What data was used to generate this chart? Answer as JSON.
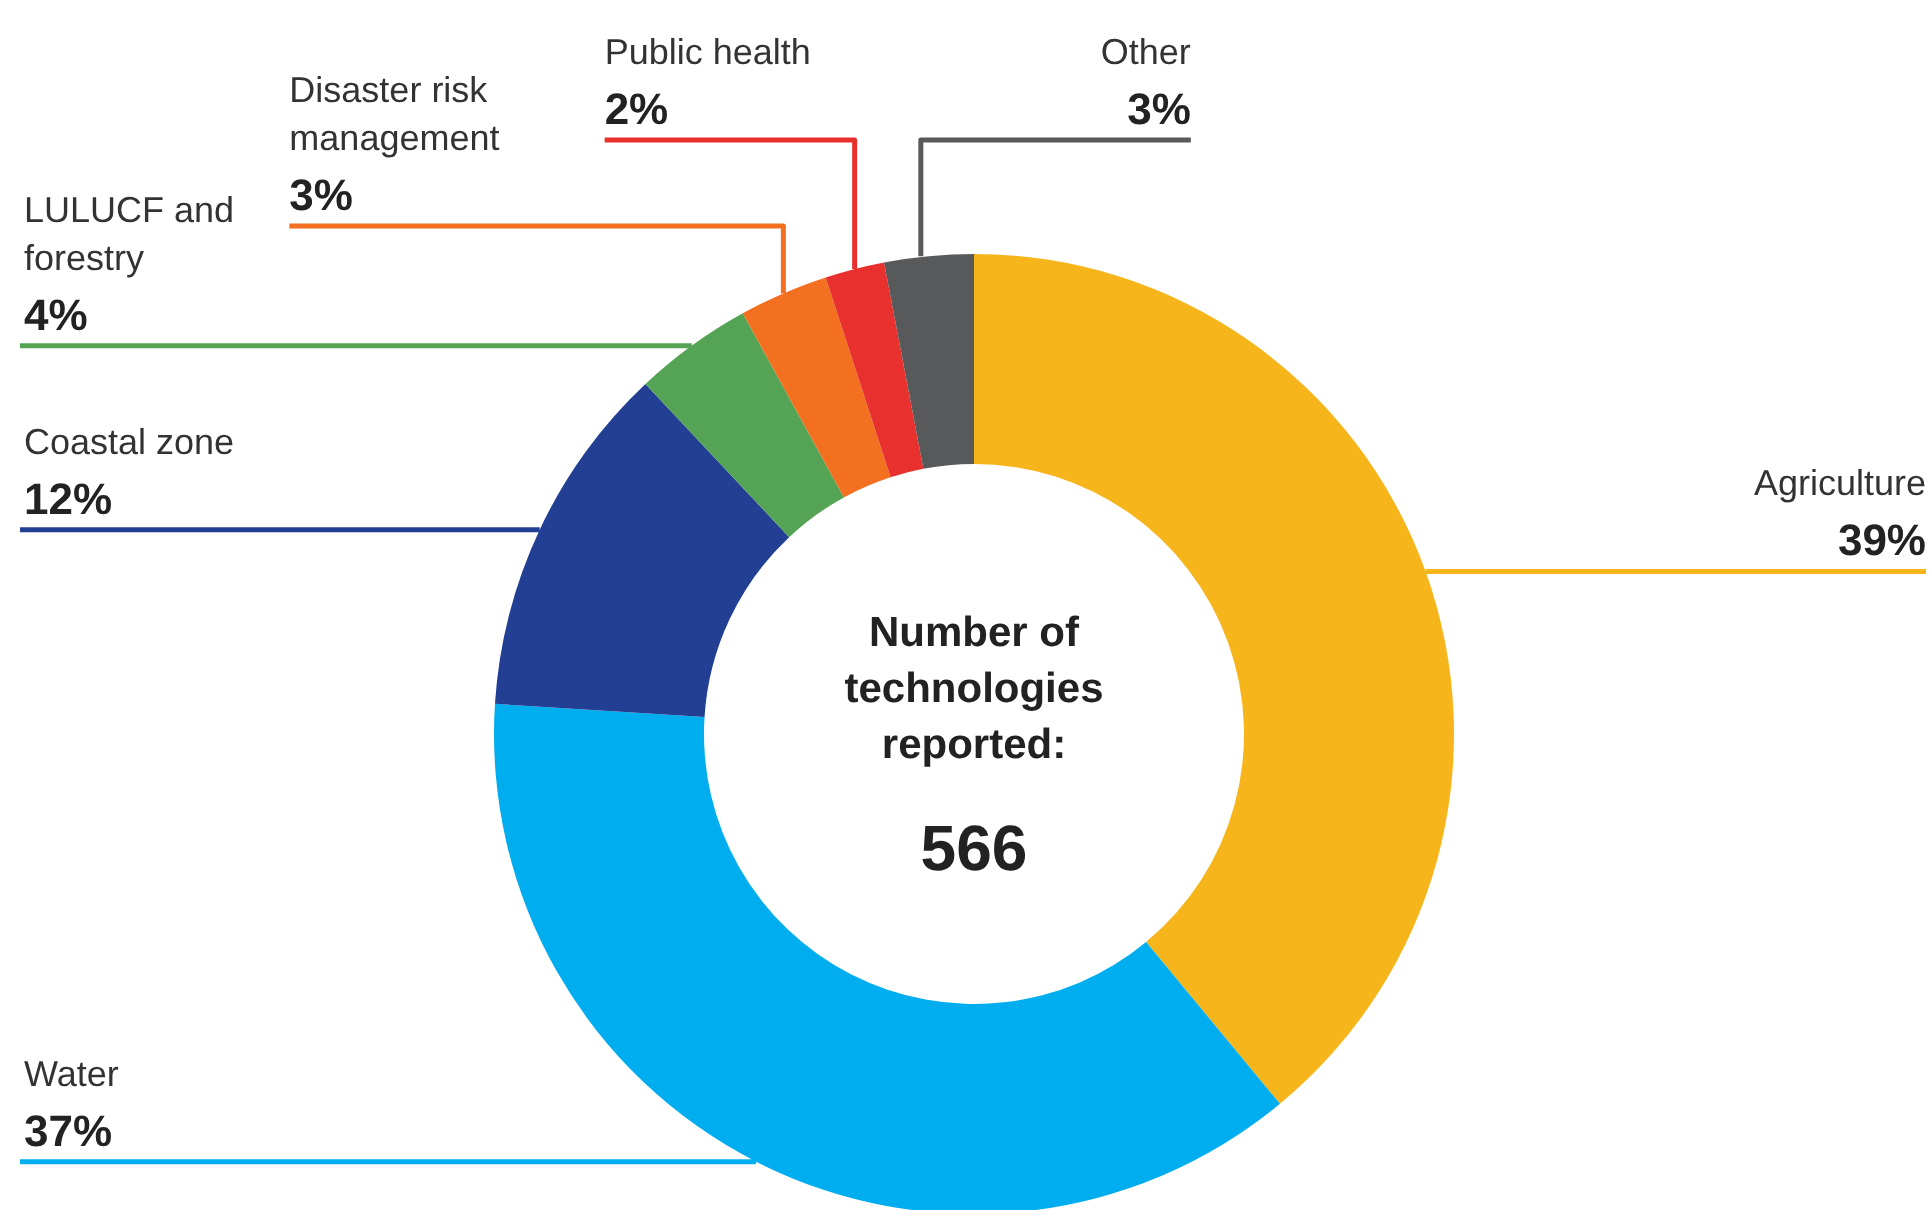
{
  "chart_data": {
    "type": "donut",
    "categories": [
      "Agriculture",
      "Water",
      "Coastal zone",
      "LULUCF and forestry",
      "Disaster risk management",
      "Public health",
      "Other"
    ],
    "values": [
      39,
      37,
      12,
      4,
      3,
      2,
      3
    ],
    "value_labels": [
      "39%",
      "37%",
      "12%",
      "4%",
      "3%",
      "2%",
      "3%"
    ],
    "colors": [
      "#f7b51c",
      "#00aeef",
      "#223f94",
      "#55a355",
      "#f37021",
      "#e8312f",
      "#58595b"
    ],
    "annotations": [
      "Number of technologies reported:",
      "566"
    ]
  }
}
